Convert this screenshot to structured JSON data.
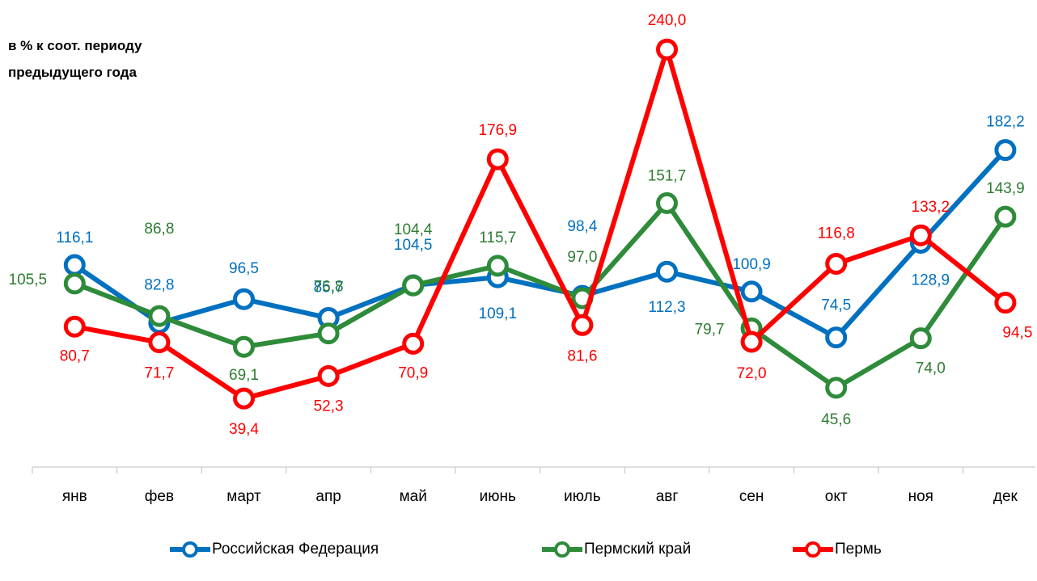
{
  "chart_data": {
    "type": "line",
    "title": "в % к соот. периоду предыдущего года",
    "categories": [
      "янв",
      "фев",
      "март",
      "апр",
      "май",
      "июнь",
      "июль",
      "авг",
      "сен",
      "окт",
      "ноя",
      "дек"
    ],
    "ylim": [
      0,
      250
    ],
    "series": [
      {
        "name": "Российская Федерация",
        "color": "#0070c0",
        "values": [
          116.1,
          82.8,
          96.5,
          85.7,
          104.5,
          109.1,
          98.4,
          112.3,
          100.9,
          74.5,
          128.9,
          182.2
        ],
        "value_labels": [
          "116,1",
          "82,8",
          "96,5",
          "85,7",
          "104,5",
          "109,1",
          "98,4",
          "112,3",
          "100,9",
          "74,5",
          "128,9",
          "182,2"
        ]
      },
      {
        "name": "Пермский край",
        "color": "#2e8b3a",
        "values": [
          105.5,
          86.8,
          69.1,
          76.8,
          104.4,
          115.7,
          97.0,
          151.7,
          79.7,
          45.6,
          74.0,
          143.9
        ],
        "value_labels": [
          "105,5",
          "86,8",
          "69,1",
          "76,8",
          "104,4",
          "115,7",
          "97,0",
          "151,7",
          "79,7",
          "45,6",
          "74,0",
          "143,9"
        ]
      },
      {
        "name": "Пермь",
        "color": "#ff0000",
        "values": [
          80.7,
          71.7,
          39.4,
          52.3,
          70.9,
          176.9,
          81.6,
          240.0,
          72.0,
          116.8,
          133.2,
          94.5
        ],
        "value_labels": [
          "80,7",
          "71,7",
          "39,4",
          "52,3",
          "70,9",
          "176,9",
          "81,6",
          "240,0",
          "72,0",
          "116,8",
          "133,2",
          "94,5"
        ]
      }
    ],
    "legend": "bottom"
  }
}
